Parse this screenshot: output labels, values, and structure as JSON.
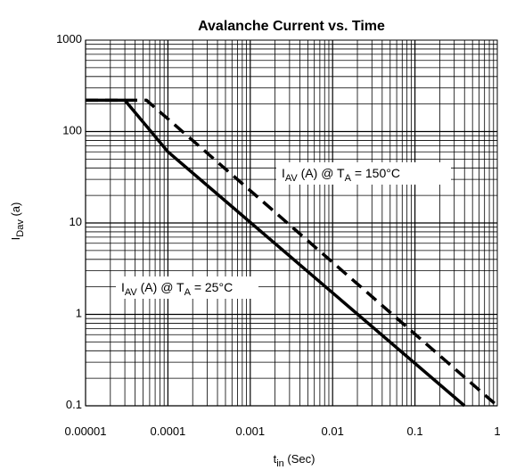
{
  "chart_data": {
    "type": "line",
    "title": "Avalanche Current vs. Time",
    "xlabel": "t",
    "xlabel_sub": "in",
    "xlabel_unit": "(Sec)",
    "ylabel": "I",
    "ylabel_sub": "Dav",
    "ylabel_unit": "(a)",
    "x_scale": "log",
    "y_scale": "log",
    "xlim": [
      1e-05,
      1
    ],
    "ylim": [
      0.1,
      1000
    ],
    "grid": true,
    "x_ticks": [
      {
        "value": 1e-05,
        "label": "0.00001"
      },
      {
        "value": 0.0001,
        "label": "0.0001"
      },
      {
        "value": 0.001,
        "label": "0.001"
      },
      {
        "value": 0.01,
        "label": "0.01"
      },
      {
        "value": 0.1,
        "label": "0.1"
      },
      {
        "value": 1,
        "label": "1"
      }
    ],
    "y_ticks": [
      {
        "value": 0.1,
        "label": "0.1"
      },
      {
        "value": 1,
        "label": "1"
      },
      {
        "value": 10,
        "label": "10"
      },
      {
        "value": 100,
        "label": "100"
      },
      {
        "value": 1000,
        "label": "1000"
      }
    ],
    "series": [
      {
        "name_main": "I",
        "name_sub": "AV",
        "name_mid": " (A) @ T",
        "name_sub2": "A",
        "name_end": " = 25°C",
        "style": "solid",
        "x": [
          1e-05,
          3e-05,
          0.0001,
          0.4
        ],
        "y": [
          220,
          220,
          60,
          0.1
        ]
      },
      {
        "name_main": "I",
        "name_sub": "AV",
        "name_mid": " (A) @ T",
        "name_sub2": "A",
        "name_end": " = 150°C",
        "style": "dashed",
        "x": [
          1e-05,
          5.5e-05,
          1.0
        ],
        "y": [
          220,
          220,
          0.1
        ]
      }
    ]
  }
}
